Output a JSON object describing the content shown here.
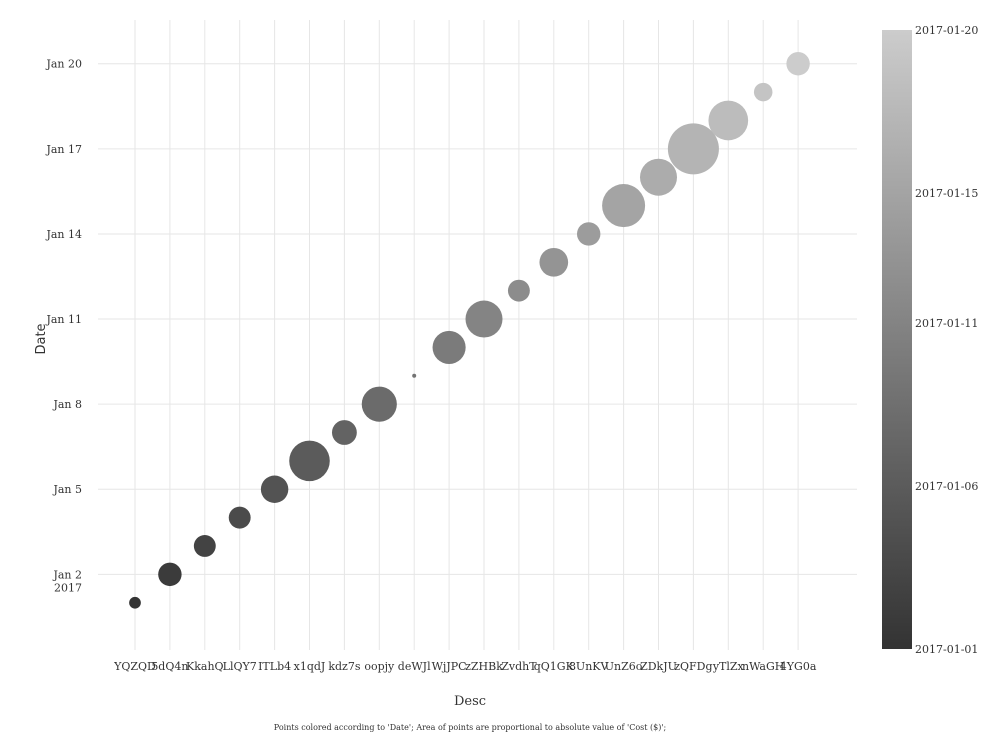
{
  "chart_data": {
    "type": "scatter",
    "xlabel": "Desc",
    "ylabel": "Date",
    "caption": "Points colored according to 'Date'; Area of points are proportional to absolute value of 'Cost ($)';",
    "categories": [
      "YQZQD",
      "5dQ4n",
      "KkahQ",
      "LlQY7",
      "ITLb4",
      "x1qdJ",
      "kdz7s",
      "oopjy",
      "deWJl",
      "WjJPC",
      "zZHBk",
      "ZvdhT",
      "qQ1GK",
      "8UnKV",
      "UnZ6o",
      "ZDkJU",
      "zQFDg",
      "yTlZx",
      "nWaGH",
      "4YG0a"
    ],
    "points": [
      {
        "x": "YQZQD",
        "y": "2017-01-01",
        "size": 2
      },
      {
        "x": "5dQ4n",
        "y": "2017-01-02",
        "size": 8
      },
      {
        "x": "KkahQ",
        "y": "2017-01-03",
        "size": 7
      },
      {
        "x": "LlQY7",
        "y": "2017-01-04",
        "size": 7
      },
      {
        "x": "ITLb4",
        "y": "2017-01-05",
        "size": 11
      },
      {
        "x": "x1qdJ",
        "y": "2017-01-06",
        "size": 24
      },
      {
        "x": "kdz7s",
        "y": "2017-01-07",
        "size": 9
      },
      {
        "x": "oopjy",
        "y": "2017-01-08",
        "size": 18
      },
      {
        "x": "deWJl",
        "y": "2017-01-09",
        "size": 0.2
      },
      {
        "x": "WjJPC",
        "y": "2017-01-10",
        "size": 16
      },
      {
        "x": "zZHBk",
        "y": "2017-01-11",
        "size": 20
      },
      {
        "x": "ZvdhT",
        "y": "2017-01-12",
        "size": 7
      },
      {
        "x": "qQ1GK",
        "y": "2017-01-13",
        "size": 12
      },
      {
        "x": "8UnKV",
        "y": "2017-01-14",
        "size": 8
      },
      {
        "x": "UnZ6o",
        "y": "2017-01-15",
        "size": 27
      },
      {
        "x": "ZDkJU",
        "y": "2017-01-16",
        "size": 20
      },
      {
        "x": "zQFDg",
        "y": "2017-01-17",
        "size": 38
      },
      {
        "x": "yTlZx",
        "y": "2017-01-18",
        "size": 23
      },
      {
        "x": "nWaGH",
        "y": "2017-01-19",
        "size": 5
      },
      {
        "x": "4YG0a",
        "y": "2017-01-20",
        "size": 8
      }
    ],
    "y_ticks": [
      {
        "value": "2017-01-02",
        "label": "Jan 2",
        "sublabel": "2017"
      },
      {
        "value": "2017-01-05",
        "label": "Jan 5"
      },
      {
        "value": "2017-01-08",
        "label": "Jan 8"
      },
      {
        "value": "2017-01-11",
        "label": "Jan 11"
      },
      {
        "value": "2017-01-14",
        "label": "Jan 14"
      },
      {
        "value": "2017-01-17",
        "label": "Jan 17"
      },
      {
        "value": "2017-01-20",
        "label": "Jan 20"
      }
    ],
    "ylim": [
      "2016-12-30T08:00",
      "2017-01-21T13:00"
    ],
    "grid": true,
    "legend_placement": "right",
    "colorbar": {
      "type": "continuous",
      "range": [
        "2017-01-01",
        "2017-01-20"
      ],
      "ticks": [
        "2017-01-01",
        "2017-01-06",
        "2017-01-11",
        "2017-01-15",
        "2017-01-20"
      ],
      "color_low": "#333333",
      "color_high": "#cccccc"
    },
    "colors": {
      "grid": "#e6e6e6",
      "point_low": "#333333",
      "point_high": "#cccccc"
    }
  }
}
